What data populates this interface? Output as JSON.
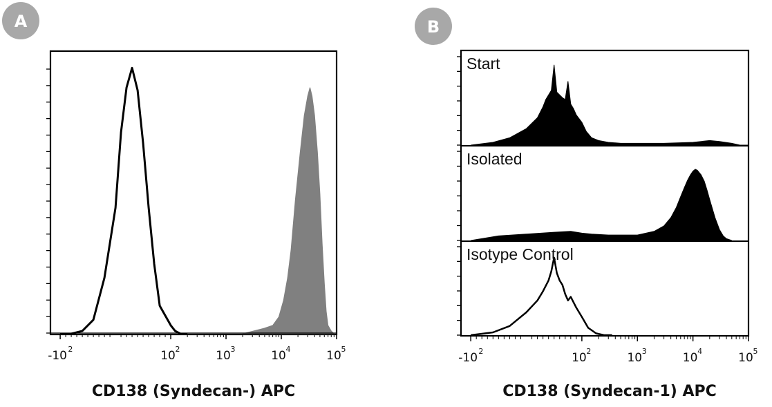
{
  "colors": {
    "badge": "#a8a8a8",
    "filled_gray": "#808080",
    "filled_black": "#000000",
    "outline": "#000000"
  },
  "chart_data": [
    {
      "panel": "A",
      "type": "area",
      "xlabel": "CD138 (Syndecan-) APC",
      "x_scale": "biexponential",
      "xlim": [
        -150,
        100000
      ],
      "x_ticks": [
        {
          "value": -100,
          "base": "-10",
          "exp": "2"
        },
        {
          "value": 100,
          "base": "10",
          "exp": "2"
        },
        {
          "value": 1000,
          "base": "10",
          "exp": "3"
        },
        {
          "value": 10000,
          "base": "10",
          "exp": "4"
        },
        {
          "value": 100000,
          "base": "10",
          "exp": "5"
        }
      ],
      "ylabel": "",
      "ylim": [
        0,
        1.0
      ],
      "y_ticks_labeled": false,
      "series": [
        {
          "style": "outline",
          "x": [
            -100,
            -80,
            -60,
            -40,
            -20,
            0,
            10,
            20,
            30,
            40,
            50,
            60,
            70,
            80,
            100,
            120,
            150,
            200
          ],
          "y": [
            0.0,
            0.0,
            0.01,
            0.05,
            0.2,
            0.45,
            0.72,
            0.88,
            0.95,
            0.87,
            0.68,
            0.45,
            0.25,
            0.1,
            0.03,
            0.01,
            0.0,
            0.0
          ]
        },
        {
          "style": "filled",
          "x": [
            2000,
            5000,
            7000,
            9000,
            11000,
            13000,
            15000,
            18000,
            22000,
            26000,
            30000,
            33000,
            36000,
            40000,
            45000,
            50000,
            55000,
            60000,
            65000,
            70000,
            80000,
            90000
          ],
          "y": [
            0.0,
            0.02,
            0.03,
            0.06,
            0.12,
            0.2,
            0.3,
            0.48,
            0.65,
            0.78,
            0.85,
            0.88,
            0.85,
            0.78,
            0.65,
            0.5,
            0.32,
            0.18,
            0.08,
            0.03,
            0.01,
            0.0
          ]
        }
      ]
    },
    {
      "panel": "B",
      "type": "area",
      "xlabel": "CD138 (Syndecan-1) APC",
      "x_scale": "biexponential",
      "xlim": [
        -150,
        100000
      ],
      "x_ticks": [
        {
          "value": -100,
          "base": "-10",
          "exp": "2"
        },
        {
          "value": 100,
          "base": "10",
          "exp": "2"
        },
        {
          "value": 1000,
          "base": "10",
          "exp": "3"
        },
        {
          "value": 10000,
          "base": "10",
          "exp": "4"
        },
        {
          "value": 100000,
          "base": "10",
          "exp": "5"
        }
      ],
      "ylabel": "",
      "y_ticks_labeled": false,
      "tracks": [
        {
          "label": "Start",
          "style": "filled",
          "x": [
            -100,
            -60,
            -30,
            0,
            20,
            30,
            35,
            40,
            45,
            50,
            55,
            60,
            65,
            70,
            75,
            80,
            85,
            90,
            100,
            120,
            150,
            200,
            300,
            500,
            1000,
            3000,
            10000,
            20000,
            30000,
            50000,
            70000,
            100000
          ],
          "y": [
            0.0,
            0.03,
            0.08,
            0.18,
            0.3,
            0.42,
            0.5,
            0.55,
            0.6,
            0.88,
            0.58,
            0.55,
            0.52,
            0.5,
            0.7,
            0.45,
            0.4,
            0.33,
            0.25,
            0.15,
            0.08,
            0.05,
            0.03,
            0.02,
            0.02,
            0.02,
            0.03,
            0.05,
            0.04,
            0.02,
            0.0,
            0.0
          ]
        },
        {
          "label": "Isolated",
          "style": "filled",
          "x": [
            -100,
            -50,
            0,
            50,
            80,
            100,
            150,
            300,
            1000,
            2000,
            3000,
            4000,
            5000,
            6000,
            7000,
            8000,
            9000,
            10000,
            11000,
            12000,
            14000,
            16000,
            18000,
            20000,
            25000,
            30000,
            35000,
            40000,
            50000
          ],
          "y": [
            0.0,
            0.05,
            0.07,
            0.09,
            0.1,
            0.08,
            0.07,
            0.06,
            0.06,
            0.1,
            0.16,
            0.25,
            0.36,
            0.48,
            0.58,
            0.66,
            0.72,
            0.76,
            0.78,
            0.77,
            0.72,
            0.65,
            0.55,
            0.45,
            0.25,
            0.12,
            0.05,
            0.02,
            0.0
          ]
        },
        {
          "label": "Isotype Control",
          "style": "outline",
          "x": [
            -100,
            -60,
            -30,
            0,
            20,
            30,
            40,
            45,
            50,
            55,
            60,
            65,
            70,
            75,
            80,
            90,
            100,
            130,
            180,
            250,
            350
          ],
          "y": [
            0.0,
            0.03,
            0.1,
            0.25,
            0.38,
            0.48,
            0.6,
            0.7,
            0.85,
            0.68,
            0.6,
            0.55,
            0.45,
            0.38,
            0.42,
            0.3,
            0.2,
            0.08,
            0.02,
            0.0,
            0.0
          ]
        }
      ]
    }
  ],
  "badges": [
    "A",
    "B"
  ]
}
